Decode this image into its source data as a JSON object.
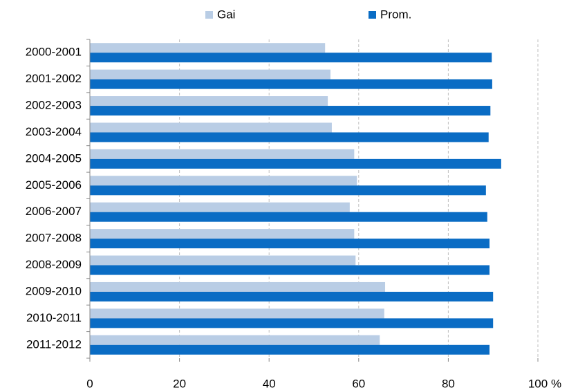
{
  "chart_data": {
    "type": "hbar",
    "categories": [
      "2000-2001",
      "2001-2002",
      "2002-2003",
      "2003-2004",
      "2004-2005",
      "2005-2006",
      "2006-2007",
      "2007-2008",
      "2008-2009",
      "2009-2010",
      "2010-2011",
      "2011-2012"
    ],
    "series": [
      {
        "name": "Gai",
        "color": "#b9cde5",
        "values": [
          52.5,
          53.7,
          53.1,
          54.0,
          59.0,
          59.6,
          58.0,
          59.0,
          59.3,
          65.9,
          65.7,
          64.7
        ]
      },
      {
        "name": "Prom.",
        "color": "#0a6cc4",
        "values": [
          89.7,
          89.8,
          89.4,
          89.0,
          91.8,
          88.4,
          88.7,
          89.2,
          89.2,
          90.0,
          90.0,
          89.2
        ]
      }
    ],
    "xlim": [
      0,
      100
    ],
    "xticks": [
      0,
      20,
      40,
      60,
      80,
      100
    ],
    "xlabel": "%",
    "grid": true,
    "legend": "top"
  }
}
